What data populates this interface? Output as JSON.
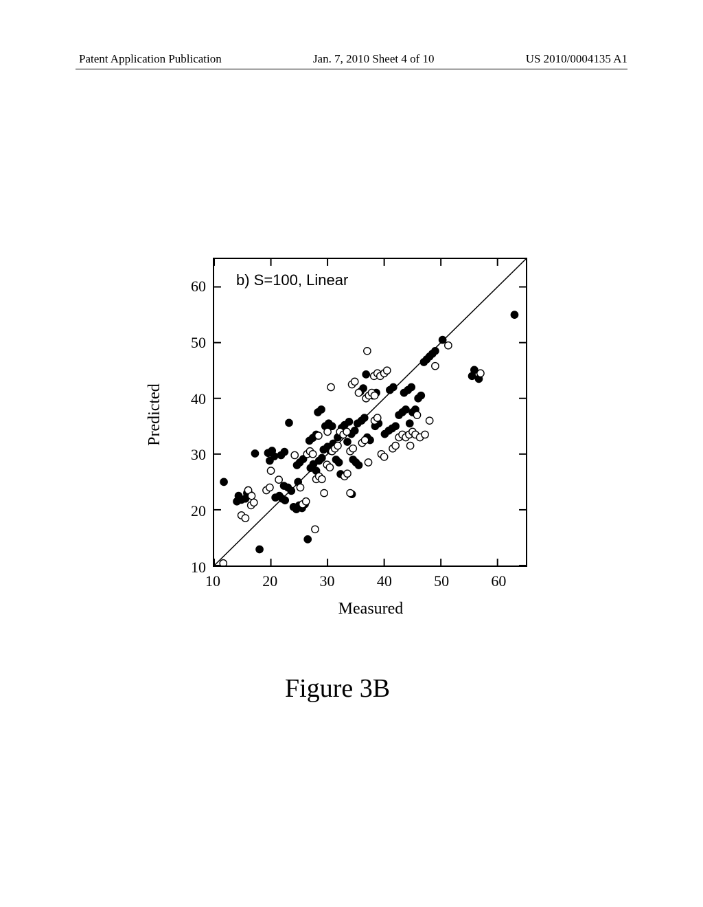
{
  "header": {
    "left": "Patent Application Publication",
    "center": "Jan. 7, 2010  Sheet 4 of 10",
    "right": "US 2010/0004135 A1"
  },
  "caption": "Figure 3B",
  "chart": {
    "type": "scatter",
    "in_plot_label": "b) S=100, Linear",
    "xlabel": "Measured",
    "ylabel": "Predicted",
    "xlim": [
      10,
      65
    ],
    "ylim": [
      10,
      65
    ],
    "xticks": [
      10,
      20,
      30,
      40,
      50,
      60
    ],
    "yticks": [
      10,
      20,
      30,
      40,
      50,
      60
    ],
    "diagonal": {
      "from": [
        10,
        10
      ],
      "to": [
        65,
        65
      ],
      "color": "#000000",
      "width": 1.5
    },
    "marker_radius": 5.2,
    "stroke_width": 1.4,
    "background_color": "#ffffff",
    "series": [
      {
        "name": "filled",
        "fill": "#000000",
        "stroke": "#000000",
        "points": [
          [
            11.7,
            25.0
          ],
          [
            14.0,
            21.5
          ],
          [
            14.3,
            22.5
          ],
          [
            14.8,
            21.8
          ],
          [
            15.5,
            22.0
          ],
          [
            15.8,
            23.0
          ],
          [
            16.5,
            22.6
          ],
          [
            17.2,
            30.1
          ],
          [
            18.0,
            12.9
          ],
          [
            19.8,
            28.8
          ],
          [
            19.5,
            30.2
          ],
          [
            20.2,
            30.6
          ],
          [
            20.6,
            29.6
          ],
          [
            20.8,
            22.2
          ],
          [
            21.5,
            22.5
          ],
          [
            22.0,
            22.0
          ],
          [
            22.5,
            21.7
          ],
          [
            22.3,
            24.3
          ],
          [
            23.0,
            24.0
          ],
          [
            23.6,
            23.4
          ],
          [
            21.8,
            29.8
          ],
          [
            22.4,
            30.4
          ],
          [
            24.0,
            20.5
          ],
          [
            24.5,
            20.1
          ],
          [
            25.0,
            20.8
          ],
          [
            25.5,
            20.3
          ],
          [
            26.0,
            21.0
          ],
          [
            24.6,
            28.0
          ],
          [
            25.1,
            28.5
          ],
          [
            25.7,
            29.1
          ],
          [
            23.2,
            35.6
          ],
          [
            24.8,
            25.0
          ],
          [
            26.5,
            14.7
          ],
          [
            27.0,
            27.5
          ],
          [
            27.5,
            28.2
          ],
          [
            28.0,
            27.0
          ],
          [
            28.5,
            28.8
          ],
          [
            29.0,
            29.3
          ],
          [
            26.8,
            32.4
          ],
          [
            27.4,
            32.9
          ],
          [
            28.0,
            33.5
          ],
          [
            28.3,
            37.5
          ],
          [
            28.9,
            38.0
          ],
          [
            29.3,
            30.8
          ],
          [
            30.0,
            31.3
          ],
          [
            30.5,
            30.6
          ],
          [
            31.0,
            31.9
          ],
          [
            29.6,
            35.0
          ],
          [
            30.2,
            35.5
          ],
          [
            30.8,
            35.0
          ],
          [
            31.5,
            29.0
          ],
          [
            32.0,
            28.5
          ],
          [
            31.8,
            33.0
          ],
          [
            32.5,
            34.7
          ],
          [
            33.0,
            35.2
          ],
          [
            33.8,
            35.8
          ],
          [
            32.3,
            26.4
          ],
          [
            33.5,
            32.2
          ],
          [
            34.2,
            33.6
          ],
          [
            34.8,
            34.2
          ],
          [
            34.3,
            22.8
          ],
          [
            34.5,
            29.0
          ],
          [
            35.0,
            28.5
          ],
          [
            35.5,
            28.0
          ],
          [
            35.3,
            35.5
          ],
          [
            36.0,
            36.0
          ],
          [
            36.5,
            36.5
          ],
          [
            35.8,
            41.2
          ],
          [
            36.3,
            41.8
          ],
          [
            36.8,
            44.3
          ],
          [
            37.0,
            33.0
          ],
          [
            37.5,
            32.5
          ],
          [
            38.4,
            35.0
          ],
          [
            39.0,
            35.5
          ],
          [
            38.0,
            40.5
          ],
          [
            38.6,
            41.0
          ],
          [
            40.1,
            33.6
          ],
          [
            40.8,
            34.2
          ],
          [
            41.4,
            34.6
          ],
          [
            42.0,
            35.0
          ],
          [
            41.0,
            41.5
          ],
          [
            41.6,
            42.0
          ],
          [
            42.6,
            37.0
          ],
          [
            43.2,
            37.5
          ],
          [
            43.8,
            38.0
          ],
          [
            44.5,
            35.5
          ],
          [
            43.5,
            41.0
          ],
          [
            44.2,
            41.5
          ],
          [
            45.0,
            37.5
          ],
          [
            45.5,
            38.0
          ],
          [
            44.8,
            42.0
          ],
          [
            46.0,
            40.0
          ],
          [
            46.5,
            40.5
          ],
          [
            47.0,
            46.5
          ],
          [
            47.5,
            47.0
          ],
          [
            48.0,
            47.5
          ],
          [
            48.5,
            48.0
          ],
          [
            49.0,
            48.5
          ],
          [
            50.3,
            50.5
          ],
          [
            55.5,
            44.0
          ],
          [
            55.9,
            45.1
          ],
          [
            56.7,
            43.5
          ],
          [
            63.0,
            55.0
          ]
        ]
      },
      {
        "name": "open",
        "fill": "#ffffff",
        "stroke": "#000000",
        "points": [
          [
            11.6,
            10.4
          ],
          [
            14.8,
            19.0
          ],
          [
            15.5,
            18.5
          ],
          [
            16.5,
            20.8
          ],
          [
            17.0,
            21.3
          ],
          [
            16.0,
            23.5
          ],
          [
            16.6,
            22.5
          ],
          [
            19.2,
            23.5
          ],
          [
            19.8,
            24.0
          ],
          [
            21.4,
            25.4
          ],
          [
            20.0,
            27.0
          ],
          [
            24.2,
            29.8
          ],
          [
            25.2,
            24.0
          ],
          [
            25.6,
            21.0
          ],
          [
            26.2,
            21.5
          ],
          [
            26.4,
            30.0
          ],
          [
            26.9,
            30.5
          ],
          [
            27.4,
            30.0
          ],
          [
            27.8,
            16.5
          ],
          [
            28.0,
            25.5
          ],
          [
            28.5,
            26.0
          ],
          [
            29.0,
            25.5
          ],
          [
            29.4,
            23.0
          ],
          [
            28.4,
            33.3
          ],
          [
            29.9,
            28.1
          ],
          [
            30.4,
            27.6
          ],
          [
            30.0,
            34.0
          ],
          [
            30.8,
            30.5
          ],
          [
            31.3,
            31.0
          ],
          [
            31.8,
            31.5
          ],
          [
            30.6,
            42.0
          ],
          [
            32.2,
            34.0
          ],
          [
            32.8,
            33.5
          ],
          [
            33.4,
            34.0
          ],
          [
            33.0,
            26.0
          ],
          [
            33.5,
            26.5
          ],
          [
            34.0,
            23.0
          ],
          [
            34.0,
            30.5
          ],
          [
            34.5,
            31.0
          ],
          [
            34.3,
            42.5
          ],
          [
            34.8,
            43.0
          ],
          [
            35.5,
            41.0
          ],
          [
            36.1,
            32.0
          ],
          [
            36.6,
            32.5
          ],
          [
            36.8,
            40.0
          ],
          [
            37.3,
            40.5
          ],
          [
            37.8,
            41.0
          ],
          [
            38.3,
            40.5
          ],
          [
            37.0,
            48.5
          ],
          [
            38.3,
            36.0
          ],
          [
            38.8,
            36.5
          ],
          [
            38.2,
            44.0
          ],
          [
            38.8,
            44.5
          ],
          [
            39.3,
            44.0
          ],
          [
            37.2,
            28.5
          ],
          [
            39.5,
            30.0
          ],
          [
            40.0,
            29.5
          ],
          [
            40.0,
            44.5
          ],
          [
            40.5,
            45.0
          ],
          [
            41.5,
            31.0
          ],
          [
            42.0,
            31.5
          ],
          [
            42.6,
            33.0
          ],
          [
            43.2,
            33.5
          ],
          [
            43.8,
            33.0
          ],
          [
            44.6,
            31.5
          ],
          [
            44.4,
            33.5
          ],
          [
            45.0,
            34.0
          ],
          [
            45.5,
            33.5
          ],
          [
            45.8,
            37.0
          ],
          [
            46.3,
            33.0
          ],
          [
            47.2,
            33.5
          ],
          [
            48.0,
            36.0
          ],
          [
            49.0,
            45.8
          ],
          [
            51.3,
            49.5
          ],
          [
            57.0,
            44.5
          ]
        ]
      }
    ]
  }
}
